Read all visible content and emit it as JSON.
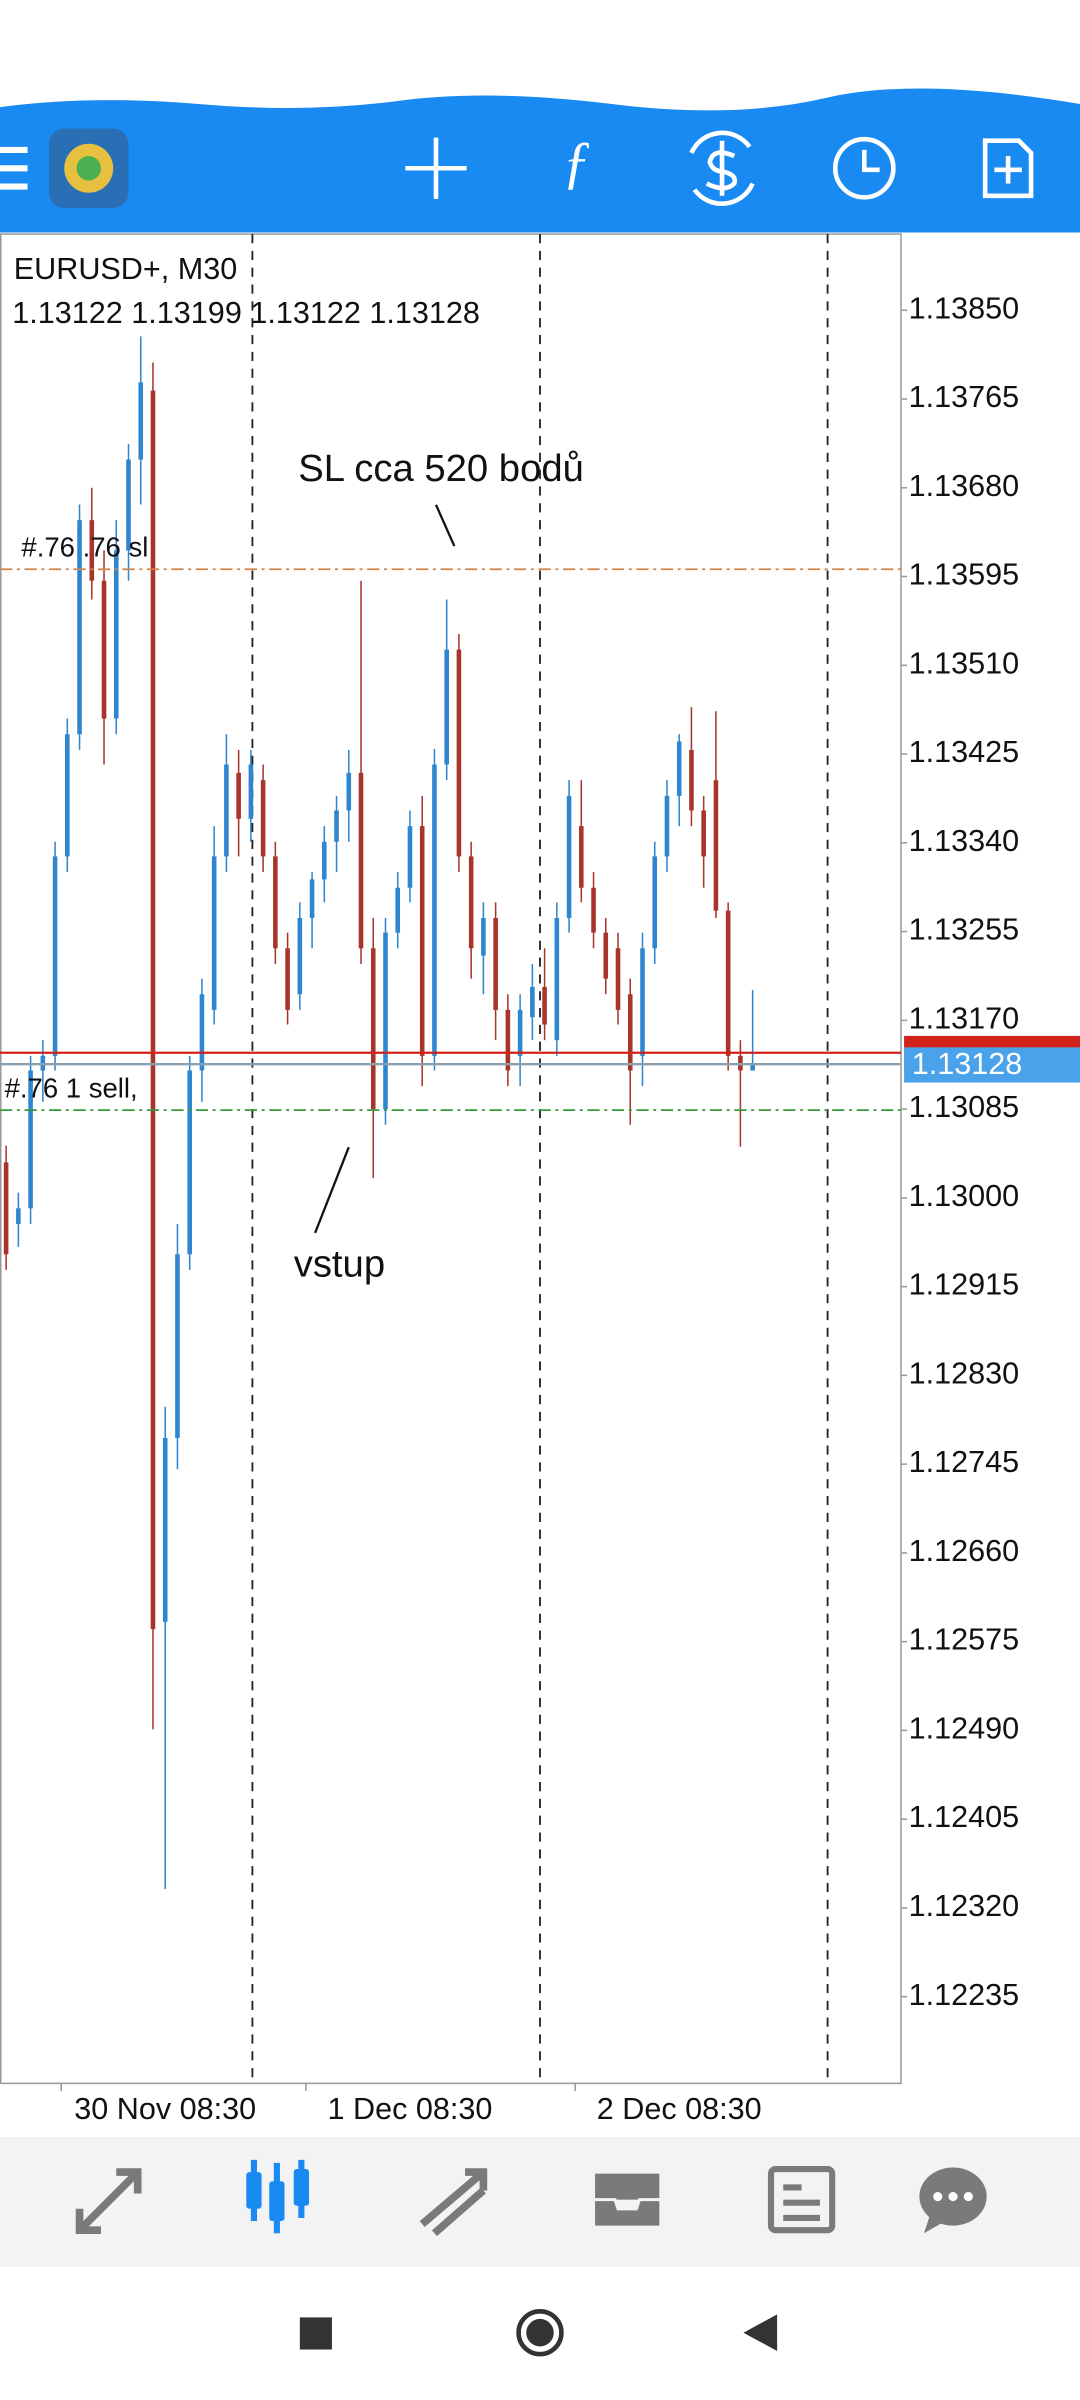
{
  "chart_data": {
    "type": "candlestick",
    "title": "EURUSD+, M30",
    "up_color": "#2f86cf",
    "down_color": "#a8352b",
    "categories": [
      null,
      null,
      null,
      null,
      null,
      null,
      null,
      null,
      null,
      null,
      null,
      null,
      null,
      "30 Nov 08:30",
      null,
      null,
      null,
      null,
      null,
      null,
      null,
      null,
      null,
      null,
      null,
      null,
      null,
      null,
      null,
      null,
      null,
      null,
      null,
      "1 Dec 08:30",
      null,
      null,
      null,
      null,
      null,
      null,
      null,
      null,
      null,
      null,
      null,
      null,
      null,
      null,
      null,
      null,
      null,
      null,
      null,
      null,
      null,
      "2 Dec 08:30",
      null,
      null,
      null,
      null,
      null,
      null
    ],
    "open": [
      1.13034,
      1.12975,
      1.1299,
      1.13122,
      1.13136,
      1.13327,
      1.13444,
      1.13649,
      1.13591,
      1.13459,
      1.1362,
      1.13707,
      1.13773,
      1.12594,
      1.1277,
      1.12946,
      1.13122,
      1.1318,
      1.13327,
      1.13407,
      1.13363,
      1.134,
      1.13327,
      1.13239,
      1.13195,
      1.13268,
      1.13305,
      1.13341,
      1.13371,
      1.13407,
      1.13239,
      1.13085,
      1.13254,
      1.13297,
      1.13356,
      1.13136,
      1.13415,
      1.13525,
      1.13327,
      1.13232,
      1.13268,
      1.1318,
      1.13136,
      1.13173,
      1.13202,
      1.13151,
      1.13268,
      1.13356,
      1.13297,
      1.13254,
      1.13239,
      1.13195,
      1.13136,
      1.13239,
      1.13327,
      1.13385,
      1.13429,
      1.13371,
      1.134,
      1.13275,
      1.13136,
      1.13122
    ],
    "high": [
      1.1305,
      1.13005,
      1.13136,
      1.13151,
      1.13341,
      1.13459,
      1.13664,
      1.1368,
      1.1362,
      1.13649,
      1.13722,
      1.13825,
      1.138,
      1.128,
      1.12975,
      1.13136,
      1.1321,
      1.13356,
      1.13444,
      1.13429,
      1.13429,
      1.13415,
      1.13341,
      1.13254,
      1.13283,
      1.13312,
      1.13356,
      1.13385,
      1.13429,
      1.13591,
      1.13268,
      1.13268,
      1.13312,
      1.13371,
      1.13385,
      1.1343,
      1.13573,
      1.1354,
      1.13341,
      1.13283,
      1.13283,
      1.13195,
      1.13195,
      1.13224,
      1.13239,
      1.13283,
      1.134,
      1.134,
      1.13312,
      1.13268,
      1.13254,
      1.1321,
      1.13254,
      1.13341,
      1.134,
      1.13444,
      1.1347,
      1.13385,
      1.13466,
      1.13283,
      1.13151,
      1.13199
    ],
    "low": [
      1.12931,
      1.12953,
      1.12975,
      1.13092,
      1.13122,
      1.13312,
      1.13429,
      1.13573,
      1.13415,
      1.13444,
      1.13591,
      1.13664,
      1.12491,
      1.12338,
      1.1274,
      1.12931,
      1.13092,
      1.13166,
      1.13312,
      1.13327,
      1.13341,
      1.13312,
      1.13224,
      1.13166,
      1.1318,
      1.13239,
      1.13283,
      1.13312,
      1.13341,
      1.13224,
      1.13019,
      1.1307,
      1.13239,
      1.13283,
      1.13107,
      1.13122,
      1.134,
      1.13312,
      1.1321,
      1.13195,
      1.13151,
      1.13107,
      1.13107,
      1.13151,
      1.13151,
      1.13136,
      1.13254,
      1.13283,
      1.13239,
      1.13195,
      1.13166,
      1.1307,
      1.13107,
      1.13224,
      1.13312,
      1.13356,
      1.13356,
      1.13297,
      1.13268,
      1.13122,
      1.13049,
      1.13122
    ],
    "close": [
      1.12946,
      1.1299,
      1.13122,
      1.13136,
      1.13327,
      1.13444,
      1.13649,
      1.13591,
      1.13459,
      1.1362,
      1.13707,
      1.13781,
      1.12587,
      1.1277,
      1.12946,
      1.13122,
      1.13195,
      1.13327,
      1.13415,
      1.13363,
      1.13415,
      1.13327,
      1.13239,
      1.1318,
      1.13268,
      1.13305,
      1.13341,
      1.13371,
      1.13407,
      1.13239,
      1.13085,
      1.13254,
      1.13297,
      1.13356,
      1.13136,
      1.13415,
      1.13525,
      1.13327,
      1.13239,
      1.13268,
      1.1318,
      1.13122,
      1.1318,
      1.13202,
      1.13166,
      1.13268,
      1.13385,
      1.13297,
      1.13254,
      1.1321,
      1.1318,
      1.13122,
      1.13239,
      1.13327,
      1.13385,
      1.13437,
      1.13371,
      1.13327,
      1.13275,
      1.13136,
      1.13122,
      1.13128
    ],
    "ylim": [
      1.12152,
      1.13923
    ],
    "yticks": [
      {
        "value": 1.1385,
        "label": "1.13850"
      },
      1.13765,
      {
        "value": 1.1368,
        "label": "1.13680"
      },
      1.13595,
      {
        "value": 1.1351,
        "label": "1.13510"
      },
      1.13425,
      {
        "value": 1.1334,
        "label": "1.13340"
      },
      1.13255,
      {
        "value": 1.1317,
        "label": "1.13170"
      },
      1.13085,
      {
        "value": 1.13,
        "label": "1.13000"
      },
      1.12915,
      {
        "value": 1.1283,
        "label": "1.12830"
      },
      1.12745,
      {
        "value": 1.1266,
        "label": "1.12660"
      },
      1.12575,
      {
        "value": 1.1249,
        "label": "1.12490"
      },
      1.12405,
      {
        "value": 1.1232,
        "label": "1.12320"
      },
      1.12235
    ],
    "sl_line": {
      "value": 1.13602,
      "label": "#.76 .76  sl",
      "color": "#d0844a"
    },
    "entry_line": {
      "value": 1.13084,
      "label": "#.76    1 sell,",
      "color": "#3a9a3a"
    },
    "ask": 1.13139,
    "ask_color": "#d0231c",
    "bid": 1.13128,
    "bid_color": "#4aa3ea",
    "annotations": [
      "SL cca 520 bodů",
      "vstup"
    ]
  }
}
